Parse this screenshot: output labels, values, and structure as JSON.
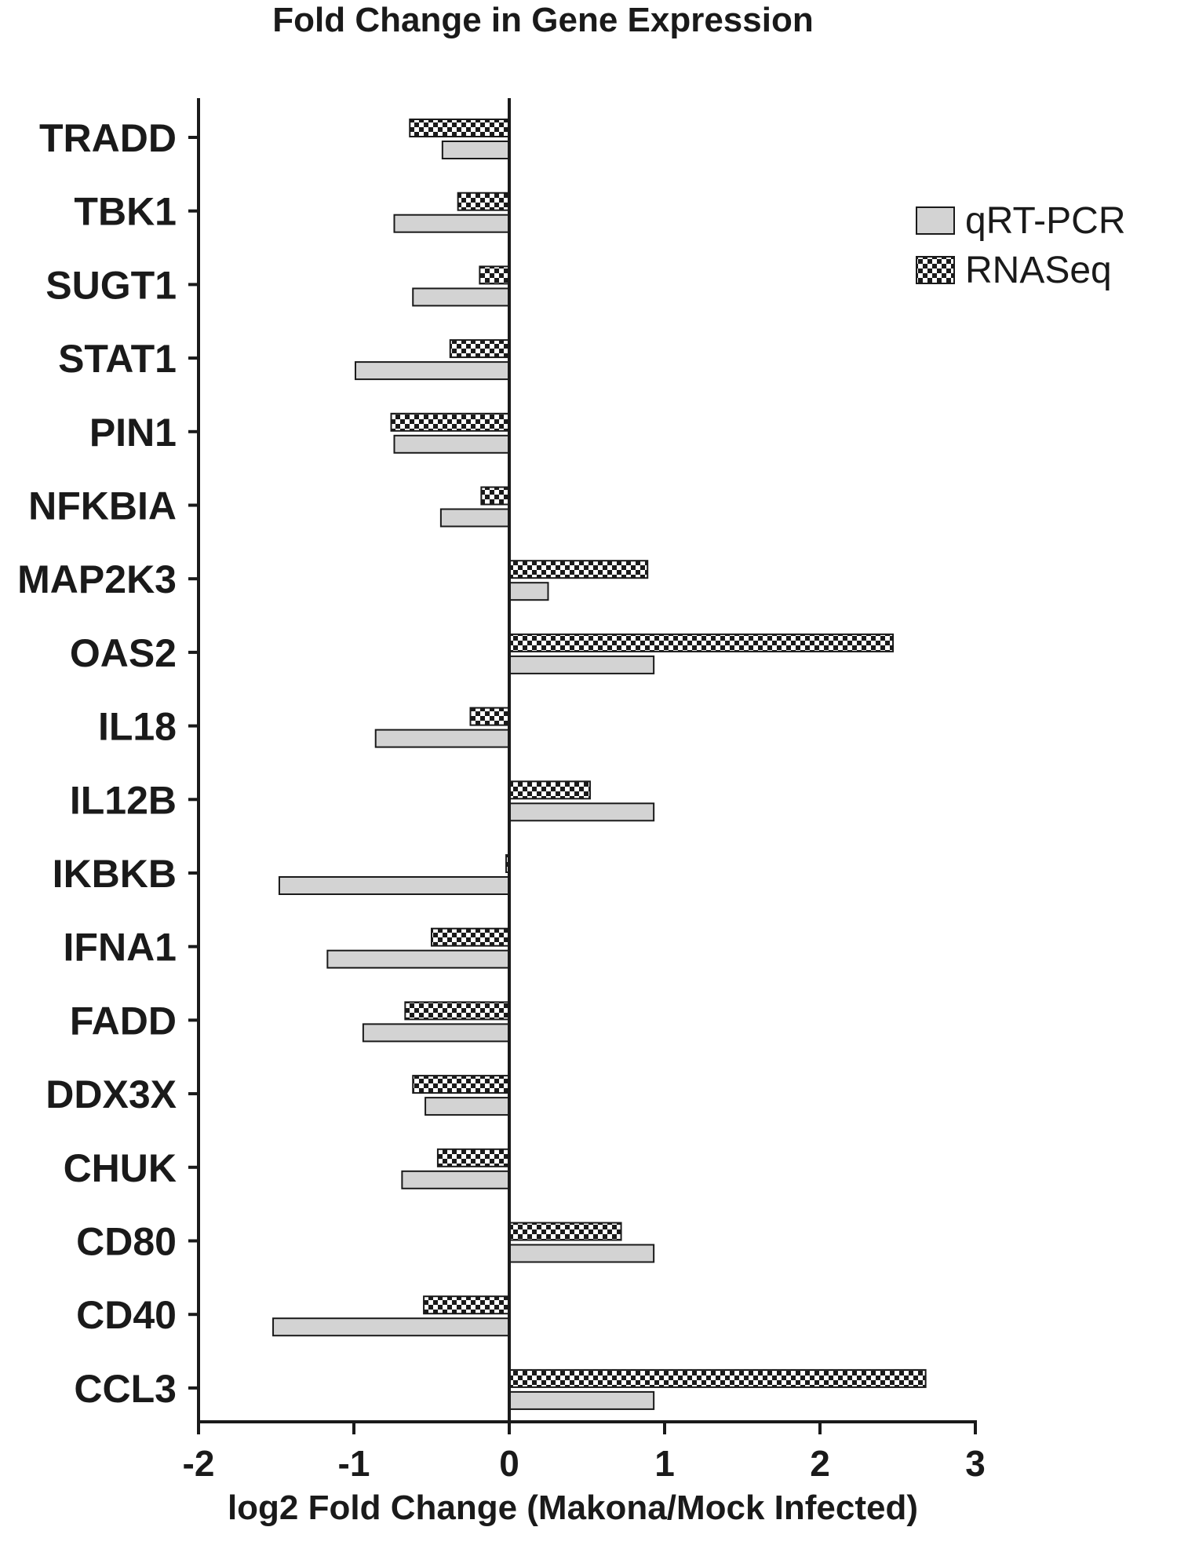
{
  "chart_data": {
    "type": "bar",
    "orientation": "horizontal",
    "title": "Fold Change in Gene Expression",
    "xlabel": "log2 Fold Change (Makona/Mock  Infected)",
    "ylabel": "",
    "xlim": [
      -2,
      3
    ],
    "xticks": [
      "-2",
      "-1",
      "0",
      "1",
      "2",
      "3"
    ],
    "grid": false,
    "legend_position": "top-right",
    "categories": [
      "TRADD",
      "TBK1",
      "SUGT1",
      "STAT1",
      "PIN1",
      "NFKBIA",
      "MAP2K3",
      "OAS2",
      "IL18",
      "IL12B",
      "IKBKB",
      "IFNA1",
      "FADD",
      "DDX3X",
      "CHUK",
      "CD80",
      "CD40",
      "CCL3"
    ],
    "series": [
      {
        "name": "qRT-PCR",
        "pattern": "solid-gray",
        "color": "#d3d3d3",
        "values": [
          -0.43,
          -0.74,
          -0.62,
          -0.99,
          -0.74,
          -0.44,
          0.25,
          0.93,
          -0.86,
          0.93,
          -1.48,
          -1.17,
          -0.94,
          -0.54,
          -0.69,
          0.93,
          -1.52,
          0.93
        ]
      },
      {
        "name": "RNASeq",
        "pattern": "checkerboard",
        "color": "#1a1a1a",
        "values": [
          -0.64,
          -0.33,
          -0.19,
          -0.38,
          -0.76,
          -0.18,
          0.89,
          2.47,
          -0.25,
          0.52,
          -0.02,
          -0.5,
          -0.67,
          -0.62,
          -0.46,
          0.72,
          -0.55,
          2.68
        ]
      }
    ]
  }
}
